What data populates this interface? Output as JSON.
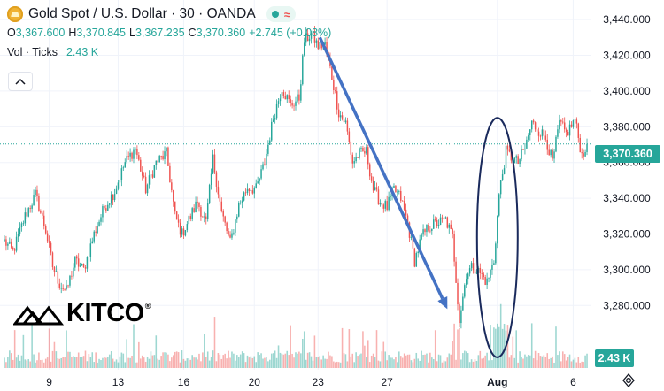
{
  "header": {
    "title": "Gold Spot / U.S. Dollar · 30 · OANDA",
    "open_label": "O",
    "open": "3,367.600",
    "high_label": "H",
    "high": "3,370.845",
    "low_label": "L",
    "low": "3,367.235",
    "close_label": "C",
    "close": "3,370.360",
    "change": "+2.745 (+0.08%)",
    "vol_label": "Vol · Ticks",
    "vol_value": "2.43 K"
  },
  "icons": {
    "symbol": "gold-coin-icon",
    "live": "status-dot-icon",
    "replay": "wave-icon",
    "collapse": "chevron-up-icon",
    "settings": "gear-icon"
  },
  "price_tag": "3,370.360",
  "volume_tag": "2.43 K",
  "watermark": {
    "text": "KITCO",
    "mark": "®"
  },
  "colors": {
    "up": "#26a69a",
    "down": "#ef5350",
    "arrow": "#4472c4",
    "ellipse": "#1a2a5c"
  },
  "chart_data": {
    "type": "candlestick",
    "symbol": "Gold Spot / U.S. Dollar",
    "interval": "30",
    "ylim": [
      3245,
      3446
    ],
    "yticks": [
      3280,
      3300,
      3320,
      3340,
      3360,
      3380,
      3400,
      3420,
      3440
    ],
    "ytick_labels": [
      "3,280.000",
      "3,300.000",
      "3,320.000",
      "3,340.000",
      "3,360.000",
      "3,380.000",
      "3,400.000",
      "3,420.000",
      "3,440.000"
    ],
    "xtick_labels": [
      "9",
      "13",
      "16",
      "20",
      "23",
      "27",
      "Aug",
      "6"
    ],
    "xtick_index": [
      26,
      66,
      104,
      145,
      182,
      222,
      286,
      330
    ],
    "num_bars": 339,
    "last_price": 3370.36,
    "close_keypoints": [
      [
        0,
        3316
      ],
      [
        5,
        3310
      ],
      [
        12,
        3330
      ],
      [
        18,
        3342
      ],
      [
        24,
        3322
      ],
      [
        28,
        3302
      ],
      [
        32,
        3292
      ],
      [
        36,
        3288
      ],
      [
        41,
        3305
      ],
      [
        46,
        3300
      ],
      [
        52,
        3320
      ],
      [
        58,
        3335
      ],
      [
        64,
        3344
      ],
      [
        70,
        3360
      ],
      [
        76,
        3368
      ],
      [
        82,
        3345
      ],
      [
        88,
        3360
      ],
      [
        94,
        3365
      ],
      [
        99,
        3330
      ],
      [
        103,
        3320
      ],
      [
        108,
        3330
      ],
      [
        112,
        3338
      ],
      [
        117,
        3326
      ],
      [
        121,
        3362
      ],
      [
        126,
        3332
      ],
      [
        131,
        3315
      ],
      [
        136,
        3336
      ],
      [
        141,
        3346
      ],
      [
        146,
        3345
      ],
      [
        151,
        3360
      ],
      [
        156,
        3385
      ],
      [
        161,
        3402
      ],
      [
        166,
        3392
      ],
      [
        171,
        3396
      ],
      [
        174,
        3428
      ],
      [
        178,
        3432
      ],
      [
        182,
        3425
      ],
      [
        186,
        3426
      ],
      [
        190,
        3408
      ],
      [
        194,
        3388
      ],
      [
        198,
        3382
      ],
      [
        202,
        3360
      ],
      [
        206,
        3365
      ],
      [
        210,
        3366
      ],
      [
        214,
        3345
      ],
      [
        218,
        3338
      ],
      [
        222,
        3335
      ],
      [
        226,
        3345
      ],
      [
        230,
        3340
      ],
      [
        234,
        3326
      ],
      [
        238,
        3305
      ],
      [
        242,
        3318
      ],
      [
        246,
        3324
      ],
      [
        251,
        3326
      ],
      [
        256,
        3328
      ],
      [
        260,
        3318
      ],
      [
        264,
        3272
      ],
      [
        268,
        3298
      ],
      [
        272,
        3302
      ],
      [
        276,
        3298
      ],
      [
        280,
        3293
      ],
      [
        284,
        3305
      ],
      [
        287,
        3342
      ],
      [
        291,
        3366
      ],
      [
        295,
        3362
      ],
      [
        298,
        3360
      ],
      [
        302,
        3368
      ],
      [
        306,
        3382
      ],
      [
        310,
        3378
      ],
      [
        314,
        3374
      ],
      [
        318,
        3360
      ],
      [
        322,
        3382
      ],
      [
        326,
        3376
      ],
      [
        331,
        3384
      ],
      [
        335,
        3364
      ],
      [
        338,
        3370.36
      ]
    ],
    "annotations": [
      {
        "type": "arrow",
        "from": [
          183,
          3430
        ],
        "to": [
          257,
          3278
        ]
      },
      {
        "type": "ellipse",
        "center": [
          286,
          3318
        ],
        "y_range": [
          3251,
          3385
        ]
      }
    ],
    "dotted_price_line": 3370.36
  }
}
